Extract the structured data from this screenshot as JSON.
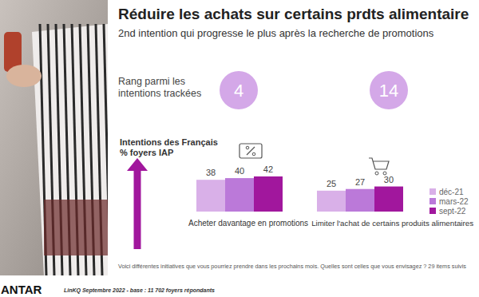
{
  "chart_data": {
    "type": "bar",
    "title": "Réduire les achats sur certains prdts alimentaire",
    "subtitle": "2nd intention qui progresse le plus après la recherche de promotions",
    "rank_label": [
      "Rang parmi les",
      "intentions trackées"
    ],
    "ranks": [
      4,
      14
    ],
    "y_label": [
      "Intentions des Français",
      "% foyers IAP"
    ],
    "categories": [
      "Acheter davantage en promotions",
      "Limiter l'achat de certains produits alimentaires"
    ],
    "series": [
      {
        "name": "déc-21",
        "color": "#d9b0e8",
        "values": [
          38,
          25
        ]
      },
      {
        "name": "mars-22",
        "color": "#bb79d9",
        "values": [
          40,
          27
        ]
      },
      {
        "name": "sept-22",
        "color": "#a1179d",
        "values": [
          42,
          30
        ]
      }
    ],
    "ylim": [
      0,
      42
    ],
    "data_labels": true,
    "tick_labels": false,
    "legend": "right",
    "footnote": "Voici différentes initiatives que vous pourriez prendre dans les prochains mois. Quelles sont celles que vous envisagez ? 29 items suivis",
    "source": "LinKQ Septembre 2022 - base : 11 702  foyers répondants",
    "logo": "ANTAR"
  }
}
